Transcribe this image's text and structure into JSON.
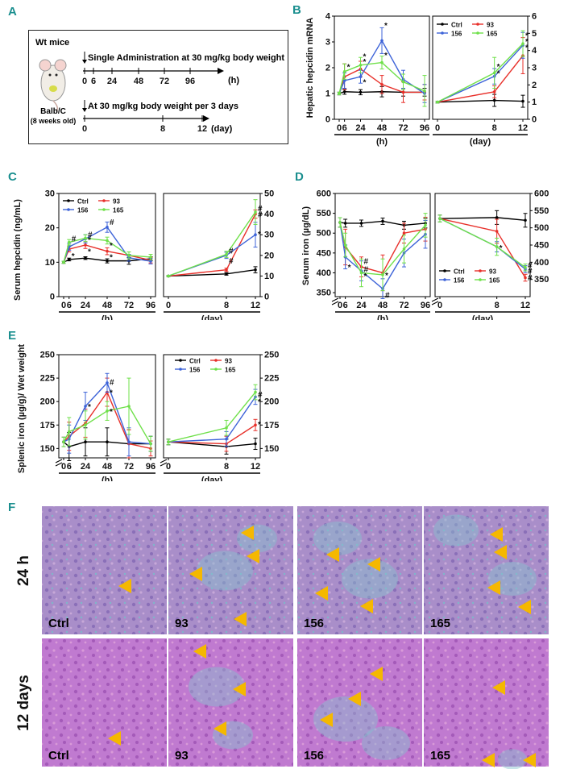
{
  "panel_labels": {
    "A": "A",
    "B": "B",
    "C": "C",
    "D": "D",
    "E": "E",
    "F": "F"
  },
  "schematic": {
    "title": "Wt mice",
    "row1_text": "Single Administration at 30 mg/kg body weight",
    "row1_ticks": [
      "0",
      "6",
      "24",
      "48",
      "72",
      "96"
    ],
    "row1_unit": "(h)",
    "mouse_label": "Balb/C",
    "mouse_age": "(8 weeks old)",
    "row2_text": "At 30 mg/kg body weight per 3 days",
    "row2_ticks": [
      "0",
      "8",
      "12"
    ],
    "row2_unit": "(day)"
  },
  "colors": {
    "Ctrl": "#000000",
    "93": "#e8302a",
    "156": "#3d63d8",
    "165": "#6fe04a",
    "panel_label": "#1b8f8f",
    "arrow": "#f5b800"
  },
  "legend": [
    {
      "key": "Ctrl",
      "label": "Ctrl"
    },
    {
      "key": "93",
      "label": "93"
    },
    {
      "key": "156",
      "label": "156"
    },
    {
      "key": "165",
      "label": "165"
    }
  ],
  "chart_data": [
    {
      "panel": "B",
      "type": "line",
      "ylabel": "Hepatic hepcidin mRNA",
      "left": {
        "xlabel": "(h)",
        "x": [
          0,
          6,
          24,
          48,
          72,
          96
        ],
        "xticks": [
          "0",
          "6",
          "24",
          "48",
          "72",
          "96"
        ],
        "ylim": [
          0,
          4
        ],
        "yticks": [
          "0",
          "1",
          "2",
          "3",
          "4"
        ],
        "series": [
          {
            "name": "Ctrl",
            "values": [
              1.0,
              1.07,
              1.05,
              1.07,
              1.05,
              1.05
            ],
            "err": [
              0.05,
              0.1,
              0.1,
              0.2,
              0.15,
              0.15
            ]
          },
          {
            "name": "93",
            "values": [
              1.0,
              1.65,
              1.95,
              1.35,
              1.05,
              1.05
            ],
            "err": [
              0.05,
              0.5,
              0.3,
              0.35,
              0.4,
              0.3
            ]
          },
          {
            "name": "156",
            "values": [
              1.0,
              1.5,
              1.65,
              3.05,
              1.55,
              1.0
            ],
            "err": [
              0.05,
              0.3,
              0.25,
              0.5,
              0.35,
              0.35
            ]
          },
          {
            "name": "165",
            "values": [
              1.0,
              1.85,
              2.1,
              2.2,
              1.45,
              1.1
            ],
            "err": [
              0.05,
              0.3,
              0.3,
              0.25,
              0.3,
              0.6
            ]
          }
        ],
        "annotations": [
          {
            "x": 6,
            "y": 2.05,
            "t": "*"
          },
          {
            "x": 24,
            "y": 2.45,
            "t": "*"
          },
          {
            "x": 24,
            "y": 2.25,
            "t": "*"
          },
          {
            "x": 24,
            "y": 1.45,
            "t": "*"
          },
          {
            "x": 48,
            "y": 3.65,
            "t": "*"
          },
          {
            "x": 48,
            "y": 2.5,
            "t": "*"
          }
        ]
      },
      "right": {
        "xlabel": "(day)",
        "x": [
          0,
          8,
          12
        ],
        "xticks": [
          "0",
          "8",
          "12"
        ],
        "ylim": [
          0,
          6
        ],
        "yticks": [
          "0",
          "1",
          "2",
          "3",
          "4",
          "5",
          "6"
        ],
        "series": [
          {
            "name": "Ctrl",
            "values": [
              1.0,
              1.1,
              1.05
            ],
            "err": [
              0.05,
              0.35,
              0.35
            ]
          },
          {
            "name": "93",
            "values": [
              1.0,
              1.6,
              3.7
            ],
            "err": [
              0.05,
              0.35,
              1.05
            ]
          },
          {
            "name": "156",
            "values": [
              1.0,
              2.5,
              4.3
            ],
            "err": [
              0.05,
              0.45,
              0.75
            ]
          },
          {
            "name": "165",
            "values": [
              1.0,
              2.7,
              4.4
            ],
            "err": [
              0.05,
              0.9,
              0.75
            ]
          }
        ],
        "annotations": [
          {
            "x": 8,
            "y": 3.1,
            "t": "*"
          },
          {
            "x": 8,
            "y": 2.7,
            "t": "*"
          },
          {
            "x": 12,
            "y": 4.9,
            "t": "*"
          },
          {
            "x": 12,
            "y": 4.55,
            "t": "*"
          },
          {
            "x": 12,
            "y": 4.2,
            "t": "*"
          }
        ]
      }
    },
    {
      "panel": "C",
      "type": "line",
      "ylabel": "Serum hepcidin (ng/mL)",
      "left": {
        "xlabel": "(h)",
        "x": [
          0,
          6,
          24,
          48,
          72,
          96
        ],
        "xticks": [
          "0",
          "6",
          "24",
          "48",
          "72",
          "96"
        ],
        "ylim": [
          0,
          30
        ],
        "yticks": [
          "0",
          "10",
          "20",
          "30"
        ],
        "series": [
          {
            "name": "Ctrl",
            "values": [
              10,
              10.8,
              11.2,
              10.4,
              10.4,
              11.0
            ],
            "err": [
              0.3,
              0.4,
              0.4,
              0.6,
              1.0,
              0.6
            ]
          },
          {
            "name": "93",
            "values": [
              10,
              13.8,
              15.0,
              13.2,
              12.0,
              10.6
            ],
            "err": [
              0.3,
              0.8,
              1.0,
              1.0,
              1.0,
              0.8
            ]
          },
          {
            "name": "156",
            "values": [
              10,
              14.5,
              16.8,
              20.2,
              11.3,
              10.3
            ],
            "err": [
              0.3,
              1.0,
              1.2,
              1.5,
              1.0,
              0.8
            ]
          },
          {
            "name": "165",
            "values": [
              10,
              15.8,
              17.0,
              16.3,
              12.0,
              11.5
            ],
            "err": [
              0.3,
              0.8,
              1.0,
              1.0,
              1.0,
              0.8
            ]
          }
        ],
        "annotations": [
          {
            "x": 6,
            "y": 17,
            "t": "#"
          },
          {
            "x": 6,
            "y": 12,
            "t": "*"
          },
          {
            "x": 24,
            "y": 18.2,
            "t": "#"
          },
          {
            "x": 24,
            "y": 16.6,
            "t": "*"
          },
          {
            "x": 24,
            "y": 13.3,
            "t": "*"
          },
          {
            "x": 48,
            "y": 21.8,
            "t": "#"
          },
          {
            "x": 48,
            "y": 15.0,
            "t": "*"
          },
          {
            "x": 48,
            "y": 11.6,
            "t": "*"
          }
        ]
      },
      "right": {
        "xlabel": "(day)",
        "x": [
          0,
          8,
          12
        ],
        "xticks": [
          "0",
          "8",
          "12"
        ],
        "ylim": [
          0,
          50
        ],
        "yticks": [
          "0",
          "10",
          "20",
          "30",
          "40",
          "50"
        ],
        "series": [
          {
            "name": "Ctrl",
            "values": [
              10,
              11,
              13
            ],
            "err": [
              0.3,
              0.6,
              1.5
            ]
          },
          {
            "name": "93",
            "values": [
              10,
              13,
              40
            ],
            "err": [
              0.3,
              0.8,
              2
            ]
          },
          {
            "name": "156",
            "values": [
              10,
              20,
              30
            ],
            "err": [
              0.3,
              1.5,
              6
            ]
          },
          {
            "name": "165",
            "values": [
              10,
              20.5,
              41
            ],
            "err": [
              0.3,
              1.5,
              6
            ]
          }
        ],
        "annotations": [
          {
            "x": 8,
            "y": 22.5,
            "t": "#"
          },
          {
            "x": 8,
            "y": 17.5,
            "t": "#"
          },
          {
            "x": 12,
            "y": 43,
            "t": "#"
          },
          {
            "x": 12,
            "y": 40,
            "t": "#"
          },
          {
            "x": 12,
            "y": 30.5,
            "t": "*"
          }
        ]
      }
    },
    {
      "panel": "D",
      "type": "line",
      "ylabel": "Serum iron (µg/dL)",
      "left": {
        "xlabel": "(h)",
        "x": [
          0,
          6,
          24,
          48,
          72,
          96
        ],
        "xticks": [
          "0",
          "6",
          "24",
          "48",
          "72",
          "96"
        ],
        "ylim": [
          340,
          600
        ],
        "yticks": [
          "350",
          "400",
          "450",
          "500",
          "550",
          "600"
        ],
        "series": [
          {
            "name": "Ctrl",
            "values": [
              527,
              525,
              525,
              530,
              520,
              525
            ],
            "err": [
              12,
              10,
              8,
              8,
              10,
              12
            ]
          },
          {
            "name": "93",
            "values": [
              527,
              465,
              415,
              400,
              500,
              510
            ],
            "err": [
              12,
              45,
              25,
              45,
              25,
              30
            ]
          },
          {
            "name": "156",
            "values": [
              527,
              440,
              405,
              360,
              450,
              497
            ],
            "err": [
              12,
              30,
              25,
              25,
              35,
              35
            ]
          },
          {
            "name": "165",
            "values": [
              527,
              470,
              400,
              395,
              460,
              520
            ],
            "err": [
              12,
              30,
              35,
              40,
              35,
              30
            ]
          }
        ],
        "annotations": [
          {
            "x": 6,
            "y": 415,
            "t": "*"
          },
          {
            "x": 24,
            "y": 430,
            "t": "#"
          },
          {
            "x": 24,
            "y": 410,
            "t": "#"
          },
          {
            "x": 24,
            "y": 393,
            "t": "*"
          },
          {
            "x": 48,
            "y": 395,
            "t": "*"
          },
          {
            "x": 48,
            "y": 345,
            "t": "#"
          }
        ]
      },
      "right": {
        "xlabel": "(day)",
        "x": [
          0,
          8,
          12
        ],
        "xticks": [
          "0",
          "8",
          "12"
        ],
        "ylim": [
          300,
          600
        ],
        "yticks": [
          "350",
          "400",
          "450",
          "500",
          "550",
          "600"
        ],
        "series": [
          {
            "name": "Ctrl",
            "values": [
              527,
              530,
              522
            ],
            "err": [
              10,
              20,
              20
            ]
          },
          {
            "name": "93",
            "values": [
              527,
              490,
              355
            ],
            "err": [
              10,
              35,
              10
            ]
          },
          {
            "name": "156",
            "values": [
              527,
              445,
              380
            ],
            "err": [
              10,
              15,
              10
            ]
          },
          {
            "name": "165",
            "values": [
              527,
              445,
              385
            ],
            "err": [
              10,
              25,
              10
            ]
          }
        ],
        "annotations": [
          {
            "x": 8,
            "y": 443,
            "t": "*"
          },
          {
            "x": 12,
            "y": 392,
            "t": "#"
          },
          {
            "x": 12,
            "y": 376,
            "t": "#"
          },
          {
            "x": 12,
            "y": 356,
            "t": "#"
          }
        ]
      }
    },
    {
      "panel": "E",
      "type": "line",
      "ylabel": "Splenic iron (µg/g)/ Wet weight",
      "left": {
        "xlabel": "(h)",
        "x": [
          0,
          6,
          24,
          48,
          72,
          96
        ],
        "xticks": [
          "0",
          "6",
          "24",
          "48",
          "72",
          "96"
        ],
        "ylim": [
          140,
          250
        ],
        "yticks": [
          "150",
          "175",
          "200",
          "225",
          "250"
        ],
        "series": [
          {
            "name": "Ctrl",
            "values": [
              157,
              152,
              157,
              157,
              155,
              155
            ],
            "err": [
              5,
              15,
              15,
              15,
              15,
              8
            ]
          },
          {
            "name": "93",
            "values": [
              157,
              163,
              177,
              210,
              155,
              150
            ],
            "err": [
              5,
              15,
              15,
              15,
              15,
              8
            ]
          },
          {
            "name": "156",
            "values": [
              157,
              160,
              195,
              220,
              157,
              155
            ],
            "err": [
              5,
              15,
              15,
              10,
              15,
              8
            ]
          },
          {
            "name": "165",
            "values": [
              157,
              168,
              175,
              190,
              195,
              155
            ],
            "err": [
              5,
              15,
              15,
              10,
              30,
              8
            ]
          }
        ],
        "annotations": [
          {
            "x": 24,
            "y": 195,
            "t": "*"
          },
          {
            "x": 48,
            "y": 221,
            "t": "#"
          },
          {
            "x": 48,
            "y": 210,
            "t": "*"
          },
          {
            "x": 48,
            "y": 190,
            "t": "*"
          }
        ]
      },
      "right": {
        "xlabel": "(day)",
        "x": [
          0,
          8,
          12
        ],
        "xticks": [
          "0",
          "8",
          "12"
        ],
        "ylim": [
          140,
          250
        ],
        "yticks": [
          "150",
          "175",
          "200",
          "225",
          "250"
        ],
        "series": [
          {
            "name": "Ctrl",
            "values": [
              157,
              152,
              155
            ],
            "err": [
              3,
              8,
              6
            ]
          },
          {
            "name": "93",
            "values": [
              157,
              155,
              175
            ],
            "err": [
              3,
              8,
              6
            ]
          },
          {
            "name": "156",
            "values": [
              157,
              160,
              205
            ],
            "err": [
              3,
              8,
              8
            ]
          },
          {
            "name": "165",
            "values": [
              157,
              172,
              210
            ],
            "err": [
              3,
              8,
              8
            ]
          }
        ],
        "annotations": [
          {
            "x": 12,
            "y": 208,
            "t": "#"
          },
          {
            "x": 12,
            "y": 200,
            "t": "*"
          },
          {
            "x": 12,
            "y": 176,
            "t": "*"
          }
        ]
      }
    }
  ],
  "histology": {
    "row_labels": [
      "24 h",
      "12 days"
    ],
    "columns": [
      "Ctrl",
      "93",
      "156",
      "165"
    ]
  }
}
